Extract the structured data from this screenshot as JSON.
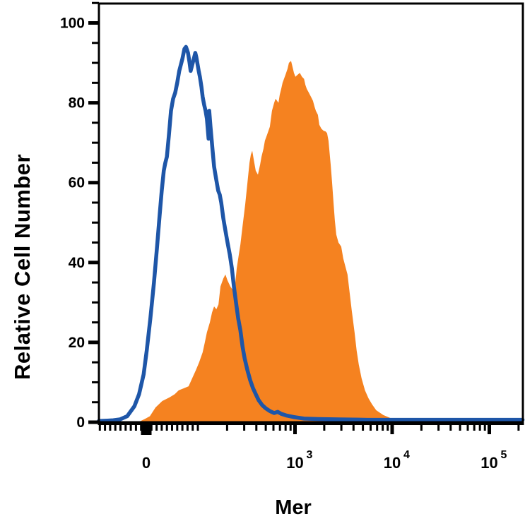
{
  "chart_data": {
    "type": "area",
    "subtype": "flow-cytometry-overlay-histogram",
    "title": "",
    "xlabel": "Mer",
    "ylabel": "Relative Cell Number",
    "background_color": "#FFFFFF",
    "axis_color": "#000000",
    "x_axis": {
      "label": "Mer",
      "scale": "biexponential: linear from -90 to 100, logarithmic decades above 100",
      "tick_values": [
        0,
        1000,
        10000,
        100000
      ],
      "tick_labels": [
        {
          "base": "0",
          "exp": ""
        },
        {
          "base": "10",
          "exp": "3"
        },
        {
          "base": "10",
          "exp": "4"
        },
        {
          "base": "10",
          "exp": "5"
        }
      ],
      "range_approx": [
        -90,
        200000
      ]
    },
    "y_axis": {
      "label": "Relative Cell Number",
      "tick_values": [
        0,
        20,
        40,
        60,
        80,
        100
      ],
      "tick_labels": [
        "0",
        "20",
        "40",
        "60",
        "80",
        "100"
      ],
      "minor_tick_step": 5,
      "range": [
        0,
        105
      ]
    },
    "series": [
      {
        "name": "orange_filled_histogram",
        "type": "area",
        "color": "#F58220",
        "points": [
          [
            -16,
            0
          ],
          [
            -3,
            0.8
          ],
          [
            7,
            1.5
          ],
          [
            18,
            3.7
          ],
          [
            31,
            5.3
          ],
          [
            45,
            6.2
          ],
          [
            55,
            7
          ],
          [
            63,
            8
          ],
          [
            73,
            8.5
          ],
          [
            82,
            9
          ],
          [
            89,
            11
          ],
          [
            96,
            13
          ],
          [
            103,
            15
          ],
          [
            112,
            17.5
          ],
          [
            118,
            20
          ],
          [
            124,
            22.5
          ],
          [
            133,
            25
          ],
          [
            140,
            27.5
          ],
          [
            147,
            29
          ],
          [
            155,
            28.3
          ],
          [
            163,
            29.5
          ],
          [
            171,
            34
          ],
          [
            183,
            36
          ],
          [
            192,
            37
          ],
          [
            202,
            35.5
          ],
          [
            216,
            34
          ],
          [
            231,
            33
          ],
          [
            242,
            34.5
          ],
          [
            251,
            38.5
          ],
          [
            264,
            42
          ],
          [
            274,
            44.5
          ],
          [
            288,
            49
          ],
          [
            307,
            54.5
          ],
          [
            324,
            60
          ],
          [
            340,
            65
          ],
          [
            351,
            67
          ],
          [
            363,
            68
          ],
          [
            375,
            66
          ],
          [
            394,
            63
          ],
          [
            415,
            62
          ],
          [
            437,
            64.5
          ],
          [
            452,
            66.5
          ],
          [
            474,
            68.5
          ],
          [
            490,
            70.5
          ],
          [
            516,
            72
          ],
          [
            551,
            74
          ],
          [
            579,
            78
          ],
          [
            610,
            80
          ],
          [
            631,
            81
          ],
          [
            653,
            80.5
          ],
          [
            676,
            80
          ],
          [
            697,
            82
          ],
          [
            721,
            83.5
          ],
          [
            745,
            85
          ],
          [
            797,
            87
          ],
          [
            838,
            88.5
          ],
          [
            866,
            90
          ],
          [
            911,
            90.5
          ],
          [
            943,
            89
          ],
          [
            975,
            87.5
          ],
          [
            1010,
            86.5
          ],
          [
            1060,
            87
          ],
          [
            1120,
            87.5
          ],
          [
            1180,
            86.5
          ],
          [
            1240,
            86
          ],
          [
            1280,
            84.5
          ],
          [
            1320,
            83.5
          ],
          [
            1390,
            82.5
          ],
          [
            1460,
            81.5
          ],
          [
            1530,
            80.5
          ],
          [
            1590,
            79
          ],
          [
            1640,
            78
          ],
          [
            1720,
            77
          ],
          [
            1780,
            74.5
          ],
          [
            1870,
            73.5
          ],
          [
            1970,
            73
          ],
          [
            2070,
            72.8
          ],
          [
            2140,
            72.4
          ],
          [
            2210,
            70.5
          ],
          [
            2330,
            64.5
          ],
          [
            2410,
            60
          ],
          [
            2490,
            55
          ],
          [
            2570,
            50.5
          ],
          [
            2660,
            47
          ],
          [
            2800,
            45
          ],
          [
            2990,
            44
          ],
          [
            3140,
            41
          ],
          [
            3300,
            39
          ],
          [
            3470,
            37
          ],
          [
            3650,
            32.5
          ],
          [
            3840,
            28
          ],
          [
            4100,
            22.5
          ],
          [
            4310,
            18
          ],
          [
            4530,
            14.5
          ],
          [
            4840,
            11
          ],
          [
            5250,
            8
          ],
          [
            5710,
            6
          ],
          [
            6200,
            4.5
          ],
          [
            6850,
            3
          ],
          [
            8080,
            1.8
          ],
          [
            9900,
            0.9
          ],
          [
            11700,
            0.4
          ],
          [
            14500,
            0.1
          ]
        ]
      },
      {
        "name": "blue_open_histogram",
        "type": "line",
        "color": "#1E56A8",
        "points": [
          [
            -92,
            0.3
          ],
          [
            -75,
            0.4
          ],
          [
            -64,
            0.5
          ],
          [
            -51,
            0.7
          ],
          [
            -37,
            1.5
          ],
          [
            -23,
            4
          ],
          [
            -14,
            7
          ],
          [
            -5,
            12
          ],
          [
            1,
            18
          ],
          [
            8,
            26
          ],
          [
            15,
            35
          ],
          [
            21,
            44
          ],
          [
            26,
            52
          ],
          [
            30,
            58
          ],
          [
            34,
            63
          ],
          [
            37,
            65
          ],
          [
            40,
            66.5
          ],
          [
            44,
            72
          ],
          [
            48,
            78
          ],
          [
            52,
            81
          ],
          [
            56,
            82.5
          ],
          [
            60,
            85
          ],
          [
            64,
            88
          ],
          [
            70,
            91
          ],
          [
            74,
            93.5
          ],
          [
            77,
            94
          ],
          [
            81,
            92.5
          ],
          [
            84,
            90
          ],
          [
            86,
            88
          ],
          [
            89,
            89.5
          ],
          [
            92,
            91
          ],
          [
            95,
            92.5
          ],
          [
            97,
            91.5
          ],
          [
            102,
            88
          ],
          [
            105,
            86.5
          ],
          [
            109,
            84
          ],
          [
            112,
            81.5
          ],
          [
            116,
            79.5
          ],
          [
            120,
            78
          ],
          [
            124,
            76
          ],
          [
            129,
            71
          ],
          [
            131,
            78
          ],
          [
            135,
            74
          ],
          [
            142,
            68
          ],
          [
            147,
            64
          ],
          [
            154,
            61
          ],
          [
            162,
            58
          ],
          [
            168,
            57
          ],
          [
            174,
            55
          ],
          [
            183,
            51
          ],
          [
            192,
            48
          ],
          [
            202,
            45
          ],
          [
            213,
            42
          ],
          [
            224,
            38.5
          ],
          [
            235,
            34
          ],
          [
            247,
            30
          ],
          [
            260,
            26
          ],
          [
            274,
            23
          ],
          [
            288,
            19
          ],
          [
            303,
            16
          ],
          [
            324,
            13
          ],
          [
            346,
            10.5
          ],
          [
            370,
            8.5
          ],
          [
            395,
            7
          ],
          [
            423,
            5.5
          ],
          [
            459,
            4.3
          ],
          [
            498,
            3.5
          ],
          [
            551,
            2.8
          ],
          [
            610,
            2.3
          ],
          [
            663,
            2.6
          ],
          [
            721,
            2.1
          ],
          [
            811,
            1.7
          ],
          [
            962,
            1.3
          ],
          [
            1240,
            0.9
          ],
          [
            1730,
            0.8
          ],
          [
            2860,
            0.7
          ],
          [
            5560,
            0.6
          ],
          [
            21000,
            0.6
          ],
          [
            220000,
            0.6
          ]
        ]
      }
    ]
  }
}
